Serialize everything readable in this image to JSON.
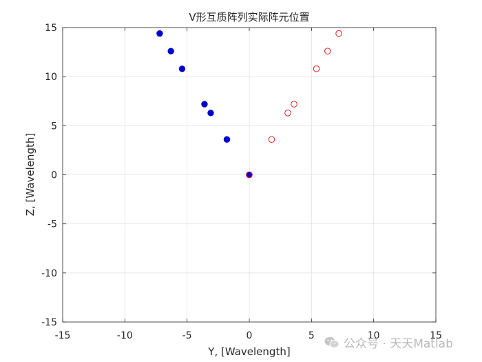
{
  "chart_data": {
    "type": "scatter",
    "title": "V形互质阵列实际阵元位置",
    "xlabel": "Y, [Wavelength]",
    "ylabel": "Z, [Wavelength]",
    "xlim": [
      -15,
      15
    ],
    "ylim": [
      -15,
      15
    ],
    "xticks": [
      "-15",
      "-10",
      "-5",
      "0",
      "5",
      "10",
      "15"
    ],
    "yticks": [
      "-15",
      "-10",
      "-5",
      "0",
      "5",
      "10",
      "15"
    ],
    "grid": true,
    "series": [
      {
        "marker": "filled-circle",
        "color": "#0000cd",
        "points": [
          [
            0,
            0
          ],
          [
            -1.8,
            3.6
          ],
          [
            -3.1,
            6.3
          ],
          [
            -3.6,
            7.2
          ],
          [
            -5.4,
            10.8
          ],
          [
            -6.3,
            12.6
          ],
          [
            -7.2,
            14.4
          ]
        ]
      },
      {
        "marker": "open-circle",
        "color": "#e21f1f",
        "points": [
          [
            0,
            0
          ],
          [
            1.8,
            3.6
          ],
          [
            3.1,
            6.3
          ],
          [
            3.6,
            7.2
          ],
          [
            5.4,
            10.8
          ],
          [
            6.3,
            12.6
          ],
          [
            7.2,
            14.4
          ]
        ]
      }
    ]
  },
  "watermark": {
    "text": "公众号 · 天天Matlab",
    "icon": "wechat-icon"
  }
}
